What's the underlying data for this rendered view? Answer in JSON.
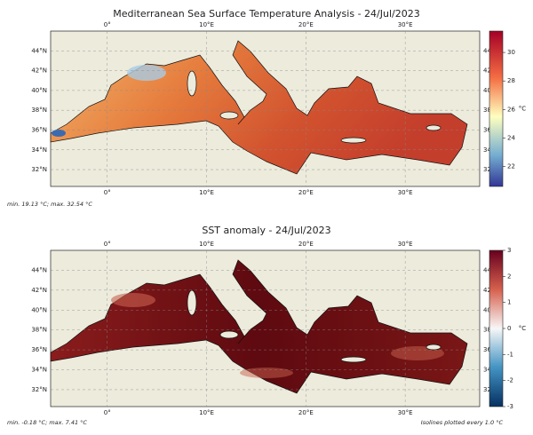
{
  "panels": [
    {
      "title": "Mediterranean Sea Surface Temperature Analysis - 24/Jul/2023",
      "xlim": [
        -5.7,
        37.5
      ],
      "ylim": [
        30.3,
        46
      ],
      "xticks": [
        {
          "value": 0,
          "label": "0°"
        },
        {
          "value": 10,
          "label": "10°E"
        },
        {
          "value": 20,
          "label": "20°E"
        },
        {
          "value": 30,
          "label": "30°E"
        }
      ],
      "yticks": [
        {
          "value": 32,
          "label": "32°N"
        },
        {
          "value": 34,
          "label": "34°N"
        },
        {
          "value": 36,
          "label": "36°N"
        },
        {
          "value": 38,
          "label": "38°N"
        },
        {
          "value": 40,
          "label": "40°N"
        },
        {
          "value": 42,
          "label": "42°N"
        },
        {
          "value": 44,
          "label": "44°N"
        }
      ],
      "colorbar": {
        "lim": [
          20.6,
          31.5
        ],
        "ticks": [
          22,
          24,
          26,
          28,
          30
        ],
        "unit": "°C"
      },
      "notes": [
        "min. 19.13 °C; max. 32.54 °C"
      ]
    },
    {
      "title": "SST anomaly - 24/Jul/2023",
      "xlim": [
        -5.7,
        37.5
      ],
      "ylim": [
        30.3,
        46
      ],
      "xticks": [
        {
          "value": 0,
          "label": "0°"
        },
        {
          "value": 10,
          "label": "10°E"
        },
        {
          "value": 20,
          "label": "20°E"
        },
        {
          "value": 30,
          "label": "30°E"
        }
      ],
      "yticks": [
        {
          "value": 32,
          "label": "32°N"
        },
        {
          "value": 34,
          "label": "34°N"
        },
        {
          "value": 36,
          "label": "36°N"
        },
        {
          "value": 38,
          "label": "38°N"
        },
        {
          "value": 40,
          "label": "40°N"
        },
        {
          "value": 42,
          "label": "42°N"
        },
        {
          "value": 44,
          "label": "44°N"
        }
      ],
      "colorbar": {
        "lim": [
          -3,
          3
        ],
        "ticks": [
          -3,
          -2,
          -1,
          0,
          1,
          2,
          3
        ],
        "unit": "°C"
      },
      "notes": [
        "min. -0.18 °C; max. 7.41 °C",
        "Isolines plotted every 1.0 °C"
      ]
    }
  ]
}
